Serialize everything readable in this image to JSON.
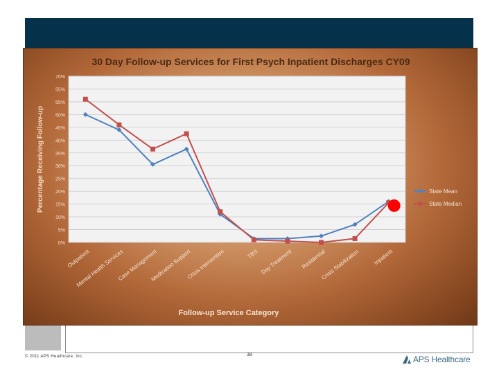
{
  "slide": {
    "footer_copyright": "© 2011 APS Healthcare, Inc.",
    "page_number": "38",
    "logo_text": "APS Healthcare"
  },
  "chart_data": {
    "type": "line",
    "title": "30 Day Follow-up Services for First Psych Inpatient Discharges CY09",
    "xlabel": "Follow-up Service Category",
    "ylabel": "Percentage Receiving Follow-up",
    "y_tick_labels": [
      "0%",
      "5%",
      "10%",
      "15%",
      "20%",
      "25%",
      "30%",
      "35%",
      "40%",
      "45%",
      "50%",
      "55%",
      "55%",
      "70%"
    ],
    "ylim": [
      0,
      65
    ],
    "grid": true,
    "legend_position": "right",
    "categories": [
      "Outpatient",
      "Mental Health Services",
      "Case Management",
      "Medication Support",
      "Crisis Intervention",
      "TBS",
      "Day Treatment",
      "Residential",
      "Crisis Stabilization",
      "Inpatient"
    ],
    "series": [
      {
        "name": "State Mean",
        "color": "#4f81bd",
        "marker": "diamond",
        "values": [
          50,
          44,
          30.5,
          36.5,
          11,
          1.5,
          1.5,
          2.5,
          7,
          16
        ]
      },
      {
        "name": "State Median",
        "color": "#c0504d",
        "marker": "square",
        "values": [
          56,
          46,
          36.5,
          42.5,
          12,
          1,
          0.5,
          0,
          1.5,
          15.5
        ]
      }
    ],
    "highlight": {
      "category": "Inpatient",
      "color": "#ff0000"
    }
  }
}
